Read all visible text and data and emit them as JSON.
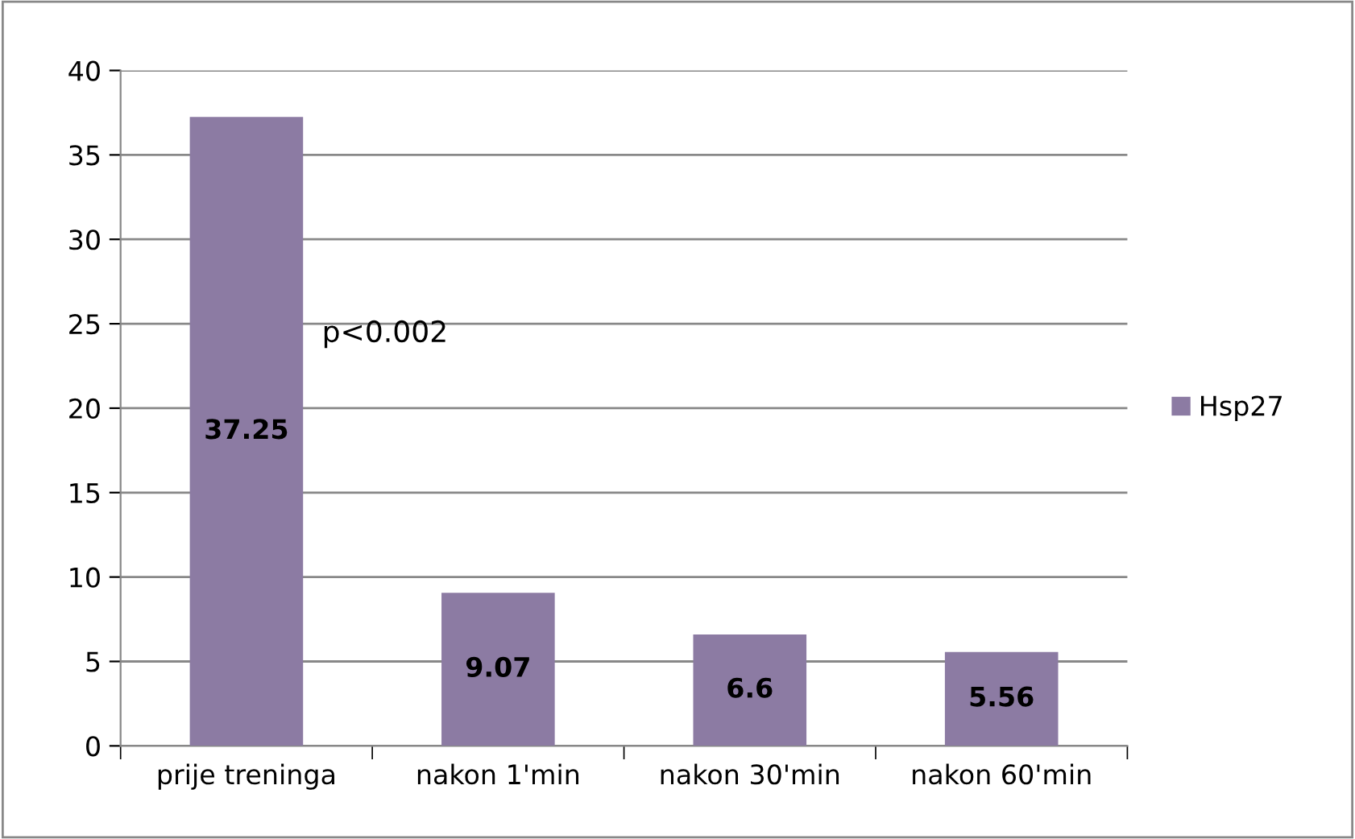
{
  "chart_data": {
    "type": "bar",
    "categories": [
      "prije treninga",
      "nakon 1'min",
      "nakon 30'min",
      "nakon 60'min"
    ],
    "series": [
      {
        "name": "Hsp27",
        "color": "#8c7ba3",
        "values": [
          37.25,
          9.07,
          6.6,
          5.56
        ]
      }
    ],
    "ylim": [
      0,
      40
    ],
    "yticks": [
      0,
      5,
      10,
      15,
      20,
      25,
      30,
      35,
      40
    ],
    "grid": "y",
    "legend": "right",
    "data_labels": true,
    "annotations": [
      "p<0.002"
    ]
  }
}
